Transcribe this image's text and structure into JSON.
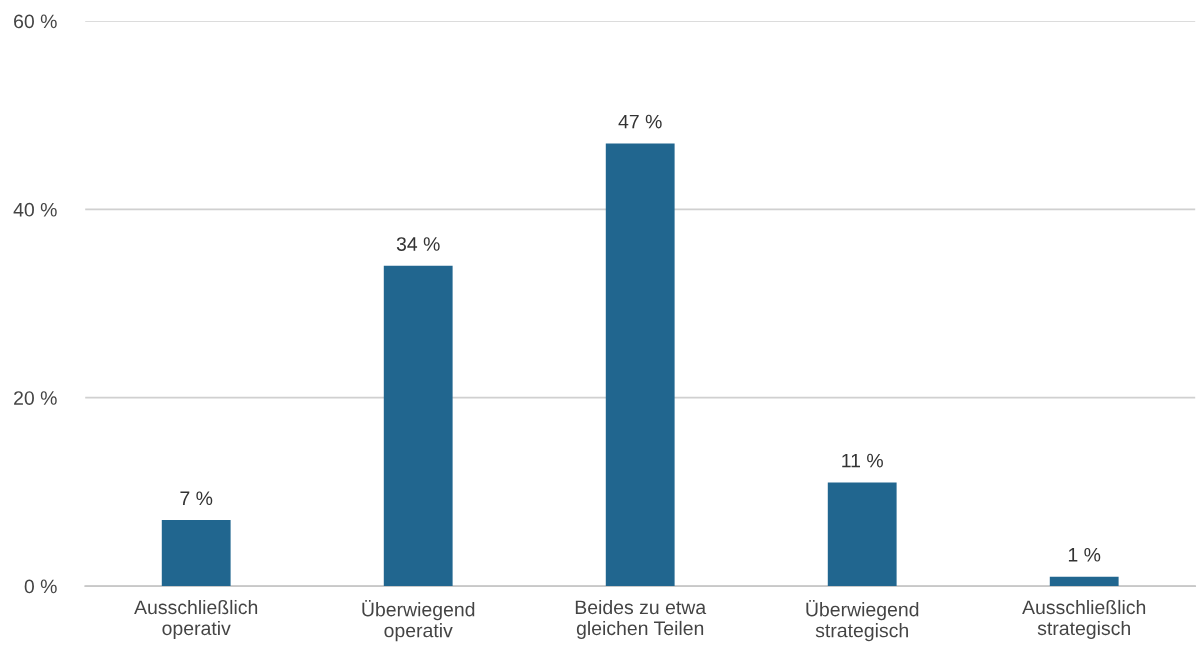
{
  "chart_data": {
    "type": "bar",
    "categories": [
      "Ausschließlich\noperativ",
      "Überwiegend\noperativ",
      "Beides zu etwa\ngleichen Teilen",
      "Überwiegend\nstrategisch",
      "Ausschließlich\nstrategisch"
    ],
    "values": [
      7,
      34,
      47,
      11,
      1
    ],
    "value_labels": [
      "7 %",
      "34 %",
      "47 %",
      "11 %",
      "1 %"
    ],
    "color": "#21668f",
    "ylim": [
      0,
      60
    ],
    "yticks": [
      {
        "value": 0,
        "label": "0 %"
      },
      {
        "value": 20,
        "label": "20 %"
      },
      {
        "value": 40,
        "label": "40 %"
      },
      {
        "value": 60,
        "label": "60 %"
      }
    ],
    "grid": "y"
  }
}
